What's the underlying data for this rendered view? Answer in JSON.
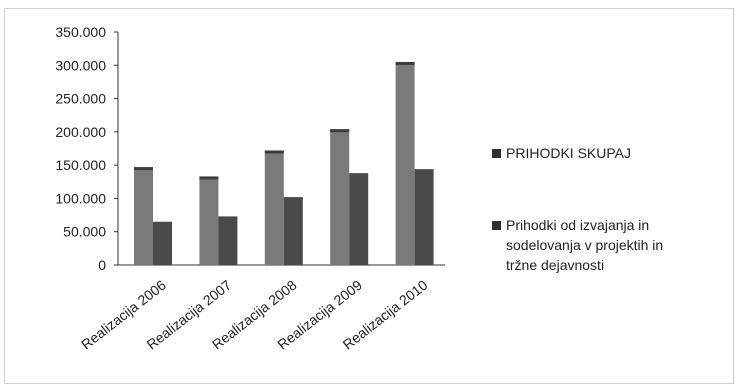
{
  "chart_data": {
    "type": "bar",
    "categories": [
      "Realizacija 2006",
      "Realizacija 2007",
      "Realizacija 2008",
      "Realizacija 2009",
      "Realizacija 2010"
    ],
    "series": [
      {
        "name": "PRIHODKI SKUPAJ",
        "values": [
          147000,
          133000,
          172000,
          204000,
          305000
        ],
        "color": "#7a7a7a"
      },
      {
        "name": "Prihodki od izvajanja in sodelovanja v projektih in tržne dejavnosti",
        "values": [
          65000,
          73000,
          102000,
          138000,
          144000
        ],
        "color": "#4a4a4a"
      }
    ],
    "yticks": [
      "0",
      "50.000",
      "100.000",
      "150.000",
      "200.000",
      "250.000",
      "300.000",
      "350.000"
    ],
    "ylim": [
      0,
      350000
    ],
    "grid": false,
    "legend_position": "right",
    "legend_lines": [
      [
        "PRIHODKI SKUPAJ"
      ],
      [
        "Prihodki od izvajanja in",
        "sodelovanja v projektih in",
        "tržne dejavnosti"
      ]
    ]
  }
}
